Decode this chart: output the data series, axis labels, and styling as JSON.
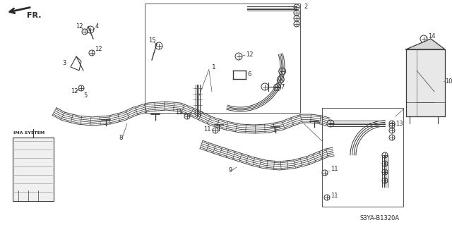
{
  "bg_color": "#ffffff",
  "line_color": "#2a2a2a",
  "part_code": "S3YA-B1320A",
  "figsize": [
    6.4,
    3.19
  ],
  "dpi": 100
}
